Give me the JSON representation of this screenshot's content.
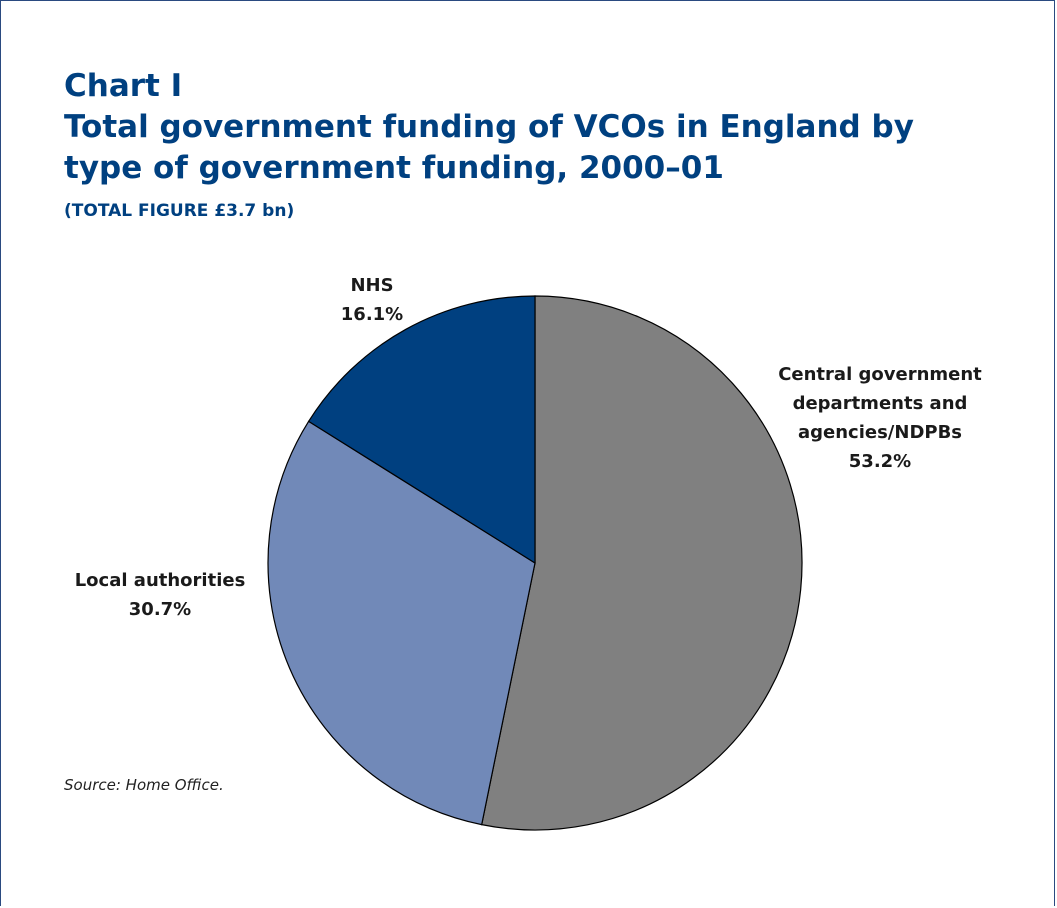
{
  "chart_data": {
    "type": "pie",
    "label": "Chart I",
    "title": "Total government funding of VCOs in England by type of government funding, 2000–01",
    "subtitle": "(TOTAL FIGURE £3.7 bn)",
    "slices": [
      {
        "name_lines": [
          "Central government",
          "departments and",
          "agencies/NDPBs"
        ],
        "value": 53.2,
        "value_label": "53.2%",
        "color": "#808080"
      },
      {
        "name_lines": [
          "Local authorities"
        ],
        "value": 30.7,
        "value_label": "30.7%",
        "color": "#7189b8"
      },
      {
        "name_lines": [
          "NHS"
        ],
        "value": 16.1,
        "value_label": "16.1%",
        "color": "#004080"
      }
    ],
    "start_angle_deg": 0,
    "direction": "clockwise",
    "source": "Source: Home Office."
  }
}
